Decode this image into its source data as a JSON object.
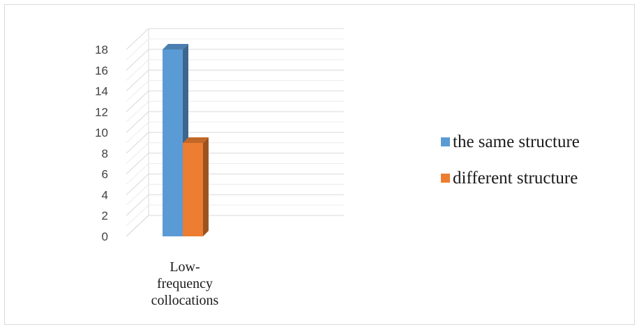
{
  "chart_data": {
    "type": "bar",
    "style": "3d-clustered-column",
    "categories": [
      "Low-frequency collocations"
    ],
    "category_label_lines": [
      "Low-",
      "frequency",
      "collocations"
    ],
    "series": [
      {
        "name": "the same structure",
        "values": [
          18
        ],
        "color": "#5b9bd5"
      },
      {
        "name": "different structure",
        "values": [
          9
        ],
        "color": "#ed7d31"
      }
    ],
    "ylim": [
      0,
      18
    ],
    "ytick_step": 2,
    "yticks": [
      "0",
      "2",
      "4",
      "6",
      "8",
      "10",
      "12",
      "14",
      "16",
      "18"
    ],
    "grid": true,
    "legend_position": "right",
    "title": "",
    "xlabel": "",
    "ylabel": ""
  }
}
